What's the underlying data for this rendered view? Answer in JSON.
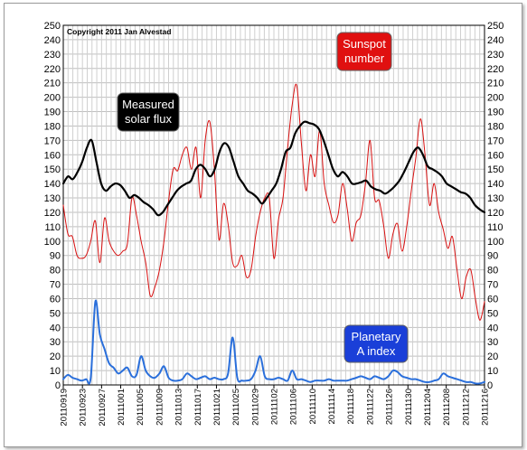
{
  "chart_data": {
    "type": "line",
    "copyright": "Copyright 2011 Jan Alvestad",
    "ylim": [
      0,
      250
    ],
    "yticks": [
      0,
      10,
      20,
      30,
      40,
      50,
      60,
      70,
      80,
      90,
      100,
      110,
      120,
      130,
      140,
      150,
      160,
      170,
      180,
      190,
      200,
      210,
      220,
      230,
      240,
      250
    ],
    "x_start": "2011-09-19",
    "x_end": "2011-12-16",
    "xticks": [
      "20110919",
      "20110923",
      "20110927",
      "20111001",
      "20111005",
      "20111009",
      "20111013",
      "20111017",
      "20111021",
      "20111025",
      "20111029",
      "20111102",
      "20111106",
      "20111110",
      "20111114",
      "20111118",
      "20111122",
      "20111126",
      "20111130",
      "20111204",
      "20111208",
      "20111212",
      "20111216"
    ],
    "grid": true,
    "series": [
      {
        "name": "Sunspot number",
        "color": "#d81010",
        "values": [
          125,
          105,
          103,
          90,
          88,
          90,
          100,
          114,
          85,
          116,
          100,
          93,
          90,
          93,
          98,
          130,
          118,
          100,
          85,
          62,
          68,
          80,
          100,
          128,
          150,
          149,
          160,
          165,
          150,
          165,
          130,
          170,
          183,
          150,
          101,
          126,
          112,
          85,
          83,
          90,
          75,
          80,
          103,
          120,
          130,
          130,
          88,
          115,
          130,
          165,
          195,
          208,
          168,
          135,
          160,
          145,
          177,
          140,
          125,
          113,
          118,
          140,
          123,
          100,
          113,
          118,
          140,
          170,
          130,
          128,
          110,
          88,
          105,
          112,
          93,
          110,
          135,
          158,
          185,
          160,
          125,
          140,
          120,
          108,
          95,
          103,
          80,
          60,
          75,
          80,
          60,
          45,
          58
        ]
      },
      {
        "name": "Measured solar flux",
        "color": "#000000",
        "values": [
          140,
          145,
          143,
          148,
          155,
          165,
          170,
          155,
          140,
          135,
          138,
          140,
          139,
          135,
          130,
          132,
          130,
          127,
          125,
          122,
          118,
          120,
          125,
          130,
          135,
          138,
          140,
          142,
          150,
          153,
          150,
          145,
          150,
          162,
          168,
          165,
          155,
          145,
          140,
          135,
          133,
          130,
          126,
          130,
          135,
          140,
          150,
          162,
          165,
          175,
          180,
          183,
          182,
          181,
          178,
          170,
          160,
          150,
          145,
          148,
          145,
          140,
          140,
          141,
          142,
          138,
          136,
          135,
          133,
          135,
          138,
          142,
          148,
          155,
          162,
          165,
          160,
          152,
          150,
          148,
          145,
          140,
          138,
          136,
          134,
          133,
          130,
          125,
          122,
          120
        ]
      },
      {
        "name": "Planetary A index",
        "color": "#2a6fdb",
        "values": [
          4,
          7,
          5,
          4,
          3,
          4,
          5,
          58,
          35,
          25,
          15,
          12,
          8,
          10,
          12,
          6,
          7,
          20,
          10,
          6,
          5,
          8,
          13,
          5,
          3,
          3,
          4,
          8,
          6,
          4,
          5,
          6,
          4,
          5,
          4,
          4,
          8,
          33,
          5,
          3,
          3,
          4,
          10,
          20,
          6,
          4,
          4,
          5,
          4,
          3,
          10,
          4,
          4,
          3,
          2,
          3,
          3,
          3,
          4,
          3,
          3,
          3,
          3,
          4,
          5,
          6,
          5,
          4,
          6,
          5,
          4,
          6,
          10,
          9,
          6,
          5,
          4,
          4,
          3,
          2,
          2,
          3,
          4,
          8,
          6,
          5,
          4,
          3,
          2,
          2,
          1,
          1,
          2
        ]
      }
    ],
    "annotations": [
      {
        "name": "sunspot",
        "lines": [
          "Sunspot",
          "number"
        ],
        "bg": "#e01010"
      },
      {
        "name": "flux",
        "lines": [
          "Measured",
          "solar flux"
        ],
        "bg": "#000000"
      },
      {
        "name": "aindex",
        "lines": [
          "Planetary",
          "A index"
        ],
        "bg": "#1a3fd8"
      }
    ]
  }
}
